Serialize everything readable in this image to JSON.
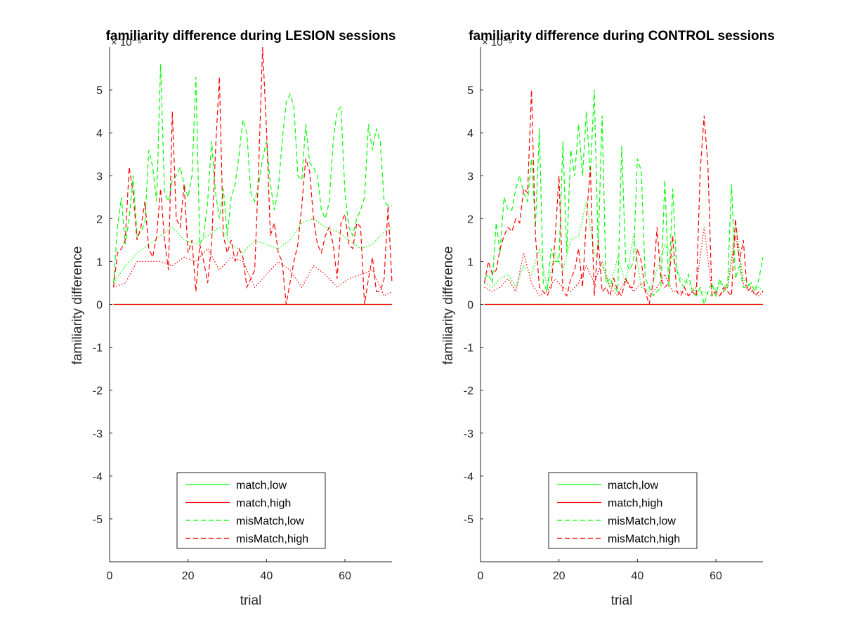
{
  "chart_data": [
    {
      "type": "line",
      "title": "familiarity difference during LESION sessions",
      "xlabel": "trial",
      "ylabel": "familiarity difference",
      "xlim": [
        0,
        72
      ],
      "ylim": [
        -6,
        6
      ],
      "y_exponent": "× 10⁻⁵",
      "xticks": [
        "0",
        "20",
        "40",
        "60"
      ],
      "xtick_values": [
        0,
        20,
        40,
        60
      ],
      "yticks": [
        "-5",
        "-4",
        "-3",
        "-2",
        "-1",
        "0",
        "1",
        "2",
        "3",
        "4",
        "5"
      ],
      "ytick_values": [
        -5,
        -4,
        -3,
        -2,
        -1,
        0,
        1,
        2,
        3,
        4,
        5
      ],
      "grid": false,
      "legend_position": "bottom",
      "series": [
        {
          "name": "match,low",
          "color": "#00ff00",
          "style": "solid",
          "x": [
            1,
            72
          ],
          "y": [
            0,
            0
          ]
        },
        {
          "name": "match,high",
          "color": "#ff0000",
          "style": "solid",
          "x": [
            1,
            72
          ],
          "y": [
            0,
            0
          ]
        },
        {
          "name": "misMatch,low",
          "color": "#00ff00",
          "style": "dashed",
          "x": [
            1,
            2,
            3,
            4,
            5,
            6,
            7,
            8,
            9,
            10,
            11,
            12,
            13,
            14,
            15,
            16,
            17,
            18,
            19,
            20,
            21,
            22,
            23,
            24,
            25,
            26,
            27,
            28,
            29,
            30,
            31,
            32,
            33,
            34,
            35,
            36,
            37,
            38,
            39,
            40,
            41,
            42,
            43,
            44,
            45,
            46,
            47,
            48,
            49,
            50,
            51,
            52,
            53,
            54,
            55,
            56,
            57,
            58,
            59,
            60,
            61,
            62,
            63,
            64,
            65,
            66,
            67,
            68,
            69,
            70,
            71,
            72
          ],
          "y": [
            0.5,
            1.8,
            2.5,
            1.4,
            2.0,
            3.0,
            1.6,
            1.7,
            1.9,
            3.6,
            3.2,
            2.4,
            5.6,
            2.6,
            2.4,
            2.9,
            3.0,
            3.2,
            2.8,
            2.5,
            3.0,
            5.3,
            1.4,
            1.6,
            2.4,
            3.8,
            2.6,
            2.0,
            2.7,
            1.6,
            2.5,
            2.8,
            3.5,
            4.3,
            4.0,
            2.6,
            2.4,
            2.8,
            3.4,
            3.8,
            2.8,
            2.2,
            2.7,
            3.8,
            4.7,
            4.9,
            4.6,
            3.0,
            2.9,
            4.2,
            3.3,
            3.2,
            3.0,
            2.2,
            2.0,
            2.4,
            3.8,
            4.5,
            4.6,
            2.6,
            1.8,
            1.6,
            2.0,
            2.2,
            2.5,
            4.2,
            3.6,
            4.1,
            3.8,
            2.4,
            2.3,
            2.3
          ]
        },
        {
          "name": "misMatch,high",
          "color": "#ff0000",
          "style": "dashed",
          "x": [
            1,
            2,
            3,
            4,
            5,
            6,
            7,
            8,
            9,
            10,
            11,
            12,
            13,
            14,
            15,
            16,
            17,
            18,
            19,
            20,
            21,
            22,
            23,
            24,
            25,
            26,
            27,
            28,
            29,
            30,
            31,
            32,
            33,
            34,
            35,
            36,
            37,
            38,
            39,
            40,
            41,
            42,
            43,
            44,
            45,
            46,
            47,
            48,
            49,
            50,
            51,
            52,
            53,
            54,
            55,
            56,
            57,
            58,
            59,
            60,
            61,
            62,
            63,
            64,
            65,
            66,
            67,
            68,
            69,
            70,
            71,
            72
          ],
          "y": [
            0.4,
            1.2,
            1.3,
            1.5,
            3.2,
            2.6,
            1.5,
            1.8,
            2.4,
            1.3,
            1.1,
            1.6,
            2.7,
            1.5,
            0.8,
            4.5,
            2.0,
            1.8,
            2.8,
            1.2,
            1.5,
            0.3,
            1.4,
            1.0,
            0.5,
            1.4,
            3.6,
            5.3,
            1.6,
            1.2,
            1.5,
            1.0,
            1.3,
            1.1,
            0.4,
            0.6,
            0.8,
            3.2,
            6.0,
            4.1,
            1.6,
            1.9,
            1.2,
            1.0,
            0.0,
            0.5,
            1.0,
            1.4,
            2.3,
            3.4,
            3.1,
            2.0,
            1.4,
            1.2,
            1.6,
            1.8,
            1.4,
            0.6,
            1.9,
            2.1,
            1.4,
            1.3,
            1.9,
            1.8,
            0.0,
            0.6,
            1.1,
            0.3,
            0.3,
            0.6,
            2.3,
            0.5
          ]
        },
        {
          "name": "",
          "color": "#00ff00",
          "style": "dotted",
          "x": [
            1,
            4,
            7,
            10,
            13,
            16,
            19,
            22,
            25,
            28,
            31,
            34,
            37,
            40,
            43,
            46,
            49,
            52,
            55,
            58,
            61,
            64,
            67,
            70,
            72
          ],
          "y": [
            0.5,
            0.9,
            1.2,
            1.4,
            1.6,
            1.8,
            1.5,
            1.4,
            1.6,
            1.8,
            1.4,
            1.2,
            1.5,
            1.4,
            1.3,
            1.5,
            1.9,
            2.0,
            1.8,
            1.7,
            1.5,
            1.3,
            1.4,
            1.7,
            1.8
          ]
        },
        {
          "name": "",
          "color": "#ff0000",
          "style": "dotted",
          "x": [
            1,
            4,
            7,
            10,
            13,
            16,
            19,
            22,
            25,
            28,
            31,
            34,
            37,
            40,
            43,
            46,
            49,
            52,
            55,
            58,
            61,
            64,
            67,
            70,
            72
          ],
          "y": [
            0.4,
            0.5,
            1.0,
            1.0,
            1.0,
            0.9,
            1.1,
            1.0,
            1.3,
            0.8,
            1.1,
            1.0,
            0.4,
            0.7,
            1.0,
            0.8,
            0.4,
            0.9,
            0.7,
            0.4,
            0.6,
            0.7,
            0.8,
            0.2,
            0.3
          ]
        }
      ]
    },
    {
      "type": "line",
      "title": "familiarity difference during CONTROL sessions",
      "xlabel": "trial",
      "ylabel": "familiarity difference",
      "xlim": [
        0,
        72
      ],
      "ylim": [
        -6,
        6
      ],
      "y_exponent": "× 10⁻⁵",
      "xticks": [
        "0",
        "20",
        "40",
        "60"
      ],
      "xtick_values": [
        0,
        20,
        40,
        60
      ],
      "yticks": [
        "-5",
        "-4",
        "-3",
        "-2",
        "-1",
        "0",
        "1",
        "2",
        "3",
        "4",
        "5"
      ],
      "ytick_values": [
        -5,
        -4,
        -3,
        -2,
        -1,
        0,
        1,
        2,
        3,
        4,
        5
      ],
      "grid": false,
      "legend_position": "bottom",
      "series": [
        {
          "name": "match,low",
          "color": "#00ff00",
          "style": "solid",
          "x": [
            1,
            72
          ],
          "y": [
            0,
            0
          ]
        },
        {
          "name": "match,high",
          "color": "#ff0000",
          "style": "solid",
          "x": [
            1,
            72
          ],
          "y": [
            0,
            0
          ]
        },
        {
          "name": "misMatch,low",
          "color": "#00ff00",
          "style": "dashed",
          "x": [
            1,
            2,
            3,
            4,
            5,
            6,
            7,
            8,
            9,
            10,
            11,
            12,
            13,
            14,
            15,
            16,
            17,
            18,
            19,
            20,
            21,
            22,
            23,
            24,
            25,
            26,
            27,
            28,
            29,
            30,
            31,
            32,
            33,
            34,
            35,
            36,
            37,
            38,
            39,
            40,
            41,
            42,
            43,
            44,
            45,
            46,
            47,
            48,
            49,
            50,
            51,
            52,
            53,
            54,
            55,
            56,
            57,
            58,
            59,
            60,
            61,
            62,
            63,
            64,
            65,
            66,
            67,
            68,
            69,
            70,
            71,
            72
          ],
          "y": [
            0.6,
            0.7,
            0.5,
            1.9,
            1.2,
            2.5,
            2.2,
            2.2,
            2.7,
            3.0,
            2.6,
            2.4,
            3.4,
            1.8,
            4.1,
            0.5,
            0.3,
            1.3,
            1.0,
            1.0,
            3.8,
            1.2,
            3.6,
            3.0,
            4.2,
            3.0,
            4.5,
            3.0,
            5.0,
            1.3,
            4.4,
            0.5,
            0.6,
            0.4,
            0.3,
            3.7,
            1.0,
            0.8,
            1.0,
            3.4,
            3.1,
            0.6,
            0.4,
            0.2,
            0.3,
            0.4,
            2.9,
            0.4,
            2.7,
            0.8,
            0.5,
            0.4,
            0.7,
            0.3,
            0.2,
            0.4,
            0.0,
            0.3,
            0.5,
            0.2,
            0.6,
            0.3,
            0.5,
            2.8,
            0.6,
            0.9,
            0.4,
            0.4,
            0.5,
            0.3,
            0.6,
            1.1
          ]
        },
        {
          "name": "misMatch,high",
          "color": "#ff0000",
          "style": "dashed",
          "x": [
            1,
            2,
            3,
            4,
            5,
            6,
            7,
            8,
            9,
            10,
            11,
            12,
            13,
            14,
            15,
            16,
            17,
            18,
            19,
            20,
            21,
            22,
            23,
            24,
            25,
            26,
            27,
            28,
            29,
            30,
            31,
            32,
            33,
            34,
            35,
            36,
            37,
            38,
            39,
            40,
            41,
            42,
            43,
            44,
            45,
            46,
            47,
            48,
            49,
            50,
            51,
            52,
            53,
            54,
            55,
            56,
            57,
            58,
            59,
            60,
            61,
            62,
            63,
            64,
            65,
            66,
            67,
            68,
            69,
            70,
            71,
            72
          ],
          "y": [
            0.5,
            1.0,
            0.7,
            0.8,
            1.3,
            1.6,
            1.8,
            1.7,
            2.0,
            1.9,
            2.7,
            2.6,
            5.0,
            1.6,
            0.4,
            0.3,
            0.2,
            0.4,
            1.5,
            3.0,
            0.3,
            0.2,
            0.6,
            0.8,
            1.3,
            0.4,
            2.0,
            3.2,
            0.2,
            1.5,
            0.3,
            0.4,
            0.2,
            0.6,
            0.3,
            0.2,
            0.6,
            0.4,
            0.4,
            1.3,
            1.0,
            0.3,
            0.0,
            0.5,
            1.8,
            0.6,
            0.4,
            0.5,
            1.6,
            0.3,
            0.2,
            0.4,
            0.2,
            0.3,
            0.2,
            3.1,
            4.4,
            3.2,
            0.2,
            0.3,
            0.2,
            0.4,
            0.3,
            0.2,
            2.0,
            1.0,
            1.5,
            0.3,
            0.4,
            0.2,
            0.3,
            0.3
          ]
        },
        {
          "name": "",
          "color": "#00ff00",
          "style": "dotted",
          "x": [
            1,
            3,
            5,
            7,
            9,
            11,
            13,
            15,
            17,
            19,
            21,
            23,
            25,
            27,
            29,
            31,
            33,
            35,
            37,
            39,
            41,
            43,
            45,
            47,
            49,
            51,
            53,
            55,
            57,
            59,
            61,
            63,
            65,
            67,
            69,
            71,
            72
          ],
          "y": [
            0.5,
            0.4,
            0.6,
            0.7,
            0.4,
            0.9,
            0.7,
            1.3,
            0.4,
            1.2,
            0.8,
            1.5,
            1.6,
            2.4,
            1.2,
            0.9,
            0.4,
            1.1,
            0.5,
            1.6,
            0.4,
            0.3,
            0.8,
            1.4,
            1.1,
            0.6,
            0.5,
            0.3,
            0.3,
            0.2,
            0.5,
            0.4,
            1.9,
            0.6,
            0.4,
            0.4,
            0.3
          ]
        },
        {
          "name": "",
          "color": "#ff0000",
          "style": "dotted",
          "x": [
            1,
            3,
            5,
            7,
            9,
            11,
            13,
            15,
            17,
            19,
            21,
            23,
            25,
            27,
            29,
            31,
            33,
            35,
            37,
            39,
            41,
            43,
            45,
            47,
            49,
            51,
            53,
            55,
            57,
            59,
            61,
            63,
            65,
            67,
            69,
            71,
            72
          ],
          "y": [
            0.4,
            0.3,
            0.4,
            0.6,
            0.3,
            1.2,
            0.5,
            0.2,
            0.3,
            0.6,
            0.4,
            0.3,
            0.5,
            0.9,
            0.5,
            1.0,
            0.4,
            0.2,
            0.6,
            0.3,
            0.5,
            0.2,
            0.4,
            0.7,
            0.3,
            0.3,
            0.2,
            0.4,
            1.8,
            0.3,
            0.2,
            0.4,
            1.6,
            0.5,
            0.3,
            0.2,
            0.3
          ]
        }
      ]
    }
  ]
}
